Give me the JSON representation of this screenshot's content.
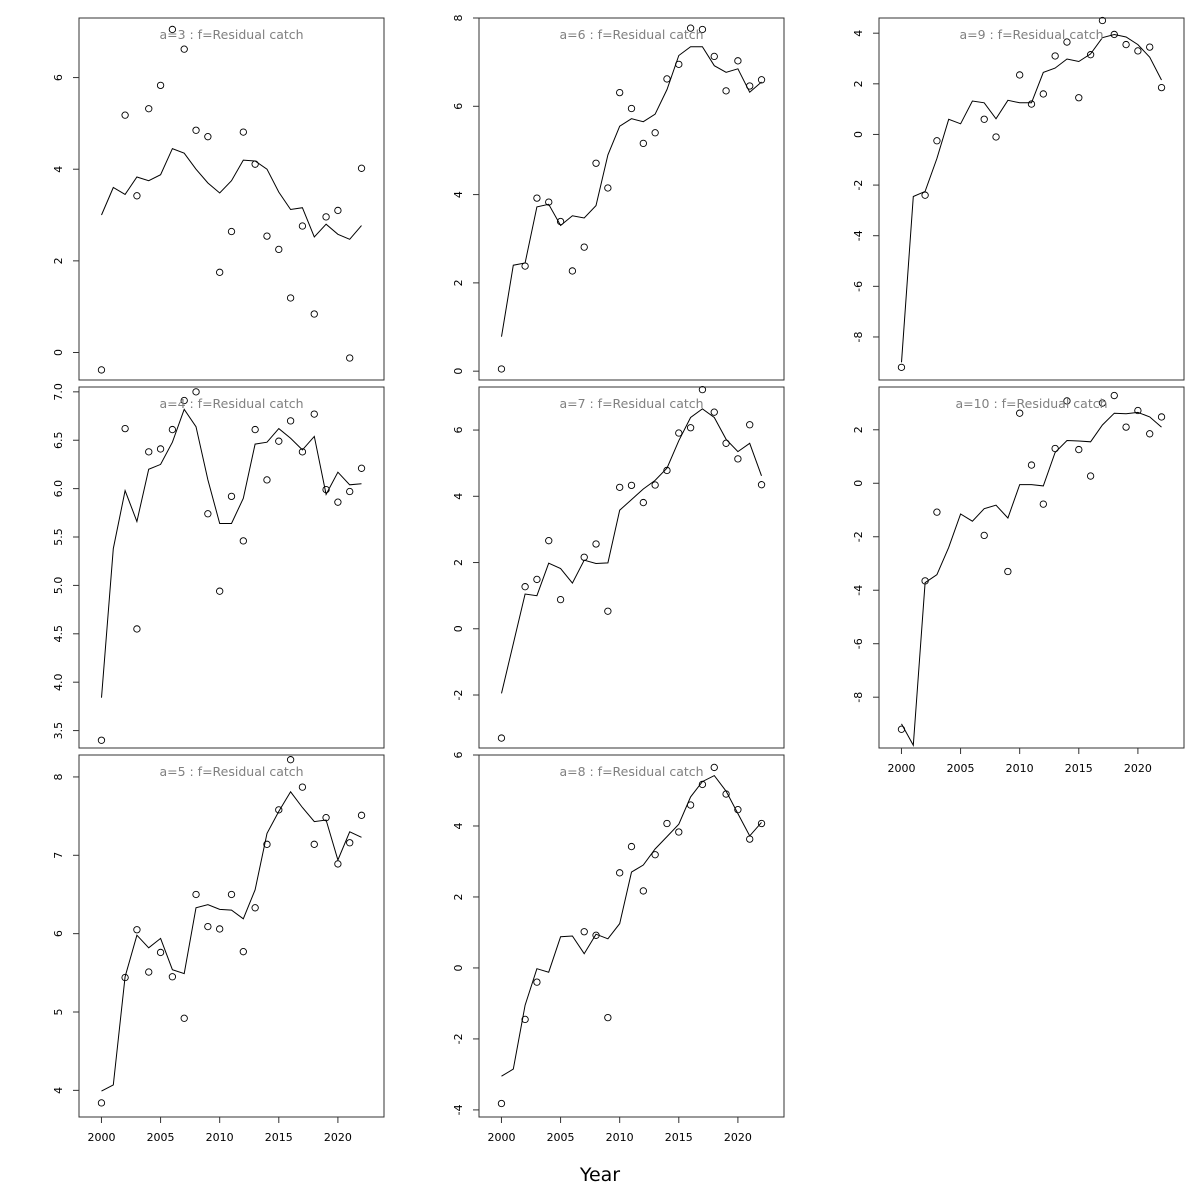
{
  "figure": {
    "xlabel": "Year"
  },
  "chart_data": [
    {
      "type": "scatter",
      "title": "a=3  :  f=Residual catch",
      "xlim": [
        1998.1,
        2023.9
      ],
      "ylim": [
        -0.6,
        7.3
      ],
      "xticks": [
        2000,
        2005,
        2010,
        2015,
        2020
      ],
      "yticks": [
        0,
        2,
        4,
        6
      ],
      "show_xticks": false,
      "x": [
        2000,
        2001,
        2002,
        2003,
        2004,
        2005,
        2006,
        2007,
        2008,
        2009,
        2010,
        2011,
        2012,
        2013,
        2014,
        2015,
        2016,
        2017,
        2018,
        2019,
        2020,
        2021,
        2022
      ],
      "series": [
        {
          "kind": "points",
          "y": [
            -0.38,
            null,
            5.18,
            3.42,
            5.32,
            5.83,
            7.05,
            6.62,
            4.85,
            4.71,
            1.75,
            2.64,
            4.81,
            4.11,
            2.54,
            2.25,
            1.19,
            2.76,
            0.84,
            2.96,
            3.1,
            -0.12,
            4.02
          ]
        },
        {
          "kind": "line",
          "y": [
            3.0,
            3.6,
            3.45,
            3.83,
            3.75,
            3.88,
            4.45,
            4.35,
            4.0,
            3.7,
            3.48,
            3.75,
            4.2,
            4.18,
            4.0,
            3.5,
            3.12,
            3.16,
            2.52,
            2.8,
            2.58,
            2.47,
            2.77
          ]
        }
      ]
    },
    {
      "type": "scatter",
      "title": "a=6  :  f=Residual catch",
      "xlim": [
        1998.1,
        2023.9
      ],
      "ylim": [
        -0.2,
        8.0
      ],
      "xticks": [
        2000,
        2005,
        2010,
        2015,
        2020
      ],
      "yticks": [
        0,
        2,
        4,
        6,
        8
      ],
      "show_xticks": false,
      "x": [
        2000,
        2001,
        2002,
        2003,
        2004,
        2005,
        2006,
        2007,
        2008,
        2009,
        2010,
        2011,
        2012,
        2013,
        2014,
        2015,
        2016,
        2017,
        2018,
        2019,
        2020,
        2021,
        2022
      ],
      "series": [
        {
          "kind": "points",
          "y": [
            0.05,
            null,
            2.38,
            3.92,
            3.83,
            3.39,
            2.27,
            2.81,
            4.71,
            4.15,
            6.31,
            5.95,
            5.16,
            5.4,
            6.62,
            6.95,
            7.77,
            7.74,
            7.13,
            6.35,
            7.03,
            6.46,
            6.6
          ]
        },
        {
          "kind": "line",
          "y": [
            0.78,
            2.4,
            2.45,
            3.72,
            3.78,
            3.3,
            3.52,
            3.47,
            3.75,
            4.9,
            5.55,
            5.72,
            5.65,
            5.82,
            6.38,
            7.15,
            7.35,
            7.35,
            6.92,
            6.77,
            6.85,
            6.32,
            6.55
          ]
        }
      ]
    },
    {
      "type": "scatter",
      "title": "a=9  :  f=Residual catch",
      "xlim": [
        1998.1,
        2023.9
      ],
      "ylim": [
        -9.7,
        4.6
      ],
      "xticks": [
        2000,
        2005,
        2010,
        2015,
        2020
      ],
      "yticks": [
        -8,
        -6,
        -4,
        -2,
        0,
        2,
        4
      ],
      "show_xticks": false,
      "x": [
        2000,
        2001,
        2002,
        2003,
        2004,
        2005,
        2006,
        2007,
        2008,
        2009,
        2010,
        2011,
        2012,
        2013,
        2014,
        2015,
        2016,
        2017,
        2018,
        2019,
        2020,
        2021,
        2022
      ],
      "series": [
        {
          "kind": "points",
          "y": [
            -9.2,
            null,
            -2.4,
            -0.25,
            null,
            null,
            null,
            0.6,
            -0.1,
            null,
            2.35,
            1.2,
            1.6,
            3.1,
            3.65,
            1.45,
            3.15,
            4.5,
            3.95,
            3.55,
            3.3,
            3.45,
            1.85
          ]
        },
        {
          "kind": "line",
          "y": [
            -9.0,
            -2.45,
            -2.25,
            -0.95,
            0.6,
            0.42,
            1.32,
            1.25,
            0.62,
            1.35,
            1.25,
            1.25,
            2.45,
            2.62,
            2.98,
            2.88,
            3.18,
            3.82,
            3.95,
            3.85,
            3.55,
            3.05,
            2.15
          ]
        }
      ]
    },
    {
      "type": "scatter",
      "title": "a=4  :  f=Residual catch",
      "xlim": [
        1998.1,
        2023.9
      ],
      "ylim": [
        3.32,
        7.05
      ],
      "xticks": [
        2000,
        2005,
        2010,
        2015,
        2020
      ],
      "yticks": [
        3.5,
        4.0,
        4.5,
        5.0,
        5.5,
        6.0,
        6.5,
        7.0
      ],
      "ytick_labels": [
        "3.5",
        "4.0",
        "4.5",
        "5.0",
        "5.5",
        "6.0",
        "6.5",
        "7.0"
      ],
      "show_xticks": false,
      "x": [
        2000,
        2001,
        2002,
        2003,
        2004,
        2005,
        2006,
        2007,
        2008,
        2009,
        2010,
        2011,
        2012,
        2013,
        2014,
        2015,
        2016,
        2017,
        2018,
        2019,
        2020,
        2021,
        2022
      ],
      "series": [
        {
          "kind": "points",
          "y": [
            3.4,
            null,
            6.62,
            4.55,
            6.38,
            6.41,
            6.61,
            6.91,
            7.0,
            5.74,
            4.94,
            5.92,
            5.46,
            6.61,
            6.09,
            6.49,
            6.7,
            6.38,
            6.77,
            5.99,
            5.86,
            5.97,
            6.21
          ]
        },
        {
          "kind": "line",
          "y": [
            3.84,
            5.38,
            5.98,
            5.66,
            6.2,
            6.25,
            6.48,
            6.82,
            6.64,
            6.09,
            5.64,
            5.64,
            5.9,
            6.46,
            6.48,
            6.62,
            6.52,
            6.4,
            6.54,
            5.94,
            6.17,
            6.04,
            6.05
          ]
        }
      ]
    },
    {
      "type": "scatter",
      "title": "a=7  :  f=Residual catch",
      "xlim": [
        1998.1,
        2023.9
      ],
      "ylim": [
        -3.6,
        7.3
      ],
      "xticks": [
        2000,
        2005,
        2010,
        2015,
        2020
      ],
      "yticks": [
        -2,
        0,
        2,
        4,
        6
      ],
      "show_xticks": false,
      "x": [
        2000,
        2001,
        2002,
        2003,
        2004,
        2005,
        2006,
        2007,
        2008,
        2009,
        2010,
        2011,
        2012,
        2013,
        2014,
        2015,
        2016,
        2017,
        2018,
        2019,
        2020,
        2021,
        2022
      ],
      "series": [
        {
          "kind": "points",
          "y": [
            -3.3,
            null,
            1.27,
            1.49,
            2.66,
            0.88,
            null,
            2.16,
            2.56,
            0.53,
            4.27,
            4.33,
            3.81,
            4.34,
            4.78,
            5.91,
            6.07,
            7.22,
            6.54,
            5.6,
            5.13,
            6.16,
            4.35
          ]
        },
        {
          "kind": "line",
          "y": [
            -1.95,
            -0.45,
            1.05,
            1.0,
            1.98,
            1.82,
            1.38,
            2.07,
            1.97,
            1.99,
            3.58,
            3.9,
            4.22,
            4.48,
            4.85,
            5.68,
            6.38,
            6.64,
            6.38,
            5.72,
            5.35,
            5.6,
            4.62
          ]
        }
      ]
    },
    {
      "type": "scatter",
      "title": "a=10  :  f=Residual catch",
      "xlim": [
        1998.1,
        2023.9
      ],
      "ylim": [
        -9.9,
        3.6
      ],
      "xticks": [
        2000,
        2005,
        2010,
        2015,
        2020
      ],
      "yticks": [
        -8,
        -6,
        -4,
        -2,
        0,
        2
      ],
      "show_xticks": true,
      "x": [
        2000,
        2001,
        2002,
        2003,
        2004,
        2005,
        2006,
        2007,
        2008,
        2009,
        2010,
        2011,
        2012,
        2013,
        2014,
        2015,
        2016,
        2017,
        2018,
        2019,
        2020,
        2021,
        2022
      ],
      "series": [
        {
          "kind": "points",
          "y": [
            -9.2,
            null,
            -3.65,
            -1.08,
            null,
            null,
            null,
            -1.95,
            null,
            -3.3,
            2.62,
            0.68,
            -0.78,
            1.3,
            3.08,
            1.26,
            0.27,
            3.0,
            3.28,
            2.1,
            2.72,
            1.85,
            2.48
          ]
        },
        {
          "kind": "line",
          "y": [
            -9.0,
            -9.8,
            -3.72,
            -3.42,
            -2.4,
            -1.15,
            -1.42,
            -0.95,
            -0.82,
            -1.3,
            -0.05,
            -0.05,
            -0.1,
            1.15,
            1.6,
            1.58,
            1.55,
            2.18,
            2.62,
            2.6,
            2.65,
            2.48,
            2.1
          ]
        }
      ]
    },
    {
      "type": "scatter",
      "title": "a=5  :  f=Residual catch",
      "xlim": [
        1998.1,
        2023.9
      ],
      "ylim": [
        3.66,
        8.28
      ],
      "xticks": [
        2000,
        2005,
        2010,
        2015,
        2020
      ],
      "yticks": [
        4,
        5,
        6,
        7,
        8
      ],
      "show_xticks": true,
      "x": [
        2000,
        2001,
        2002,
        2003,
        2004,
        2005,
        2006,
        2007,
        2008,
        2009,
        2010,
        2011,
        2012,
        2013,
        2014,
        2015,
        2016,
        2017,
        2018,
        2019,
        2020,
        2021,
        2022
      ],
      "series": [
        {
          "kind": "points",
          "y": [
            3.84,
            null,
            5.44,
            6.05,
            5.51,
            5.76,
            5.45,
            4.92,
            6.5,
            6.09,
            6.06,
            6.5,
            5.77,
            6.33,
            7.14,
            7.58,
            8.22,
            7.87,
            7.14,
            7.48,
            6.89,
            7.16,
            7.51
          ]
        },
        {
          "kind": "line",
          "y": [
            3.99,
            4.07,
            5.45,
            5.98,
            5.82,
            5.94,
            5.54,
            5.49,
            6.33,
            6.37,
            6.31,
            6.3,
            6.19,
            6.56,
            7.28,
            7.56,
            7.81,
            7.61,
            7.43,
            7.45,
            6.94,
            7.3,
            7.23
          ]
        }
      ]
    },
    {
      "type": "scatter",
      "title": "a=8  :  f=Residual catch",
      "xlim": [
        1998.1,
        2023.9
      ],
      "ylim": [
        -4.2,
        6.0
      ],
      "xticks": [
        2000,
        2005,
        2010,
        2015,
        2020
      ],
      "yticks": [
        -4,
        -2,
        0,
        2,
        4,
        6
      ],
      "show_xticks": true,
      "x": [
        2000,
        2001,
        2002,
        2003,
        2004,
        2005,
        2006,
        2007,
        2008,
        2009,
        2010,
        2011,
        2012,
        2013,
        2014,
        2015,
        2016,
        2017,
        2018,
        2019,
        2020,
        2021,
        2022
      ],
      "series": [
        {
          "kind": "points",
          "y": [
            -3.82,
            null,
            -1.45,
            -0.4,
            null,
            null,
            null,
            1.02,
            0.92,
            -1.4,
            2.68,
            3.42,
            2.17,
            3.19,
            4.07,
            3.83,
            4.59,
            5.17,
            5.65,
            4.9,
            4.46,
            3.63,
            4.07
          ]
        },
        {
          "kind": "line",
          "y": [
            -3.05,
            -2.85,
            -1.05,
            -0.02,
            -0.12,
            0.88,
            0.9,
            0.4,
            0.95,
            0.82,
            1.25,
            2.7,
            2.9,
            3.35,
            3.7,
            4.05,
            4.82,
            5.25,
            5.42,
            4.98,
            4.35,
            3.72,
            4.1
          ]
        }
      ]
    }
  ]
}
